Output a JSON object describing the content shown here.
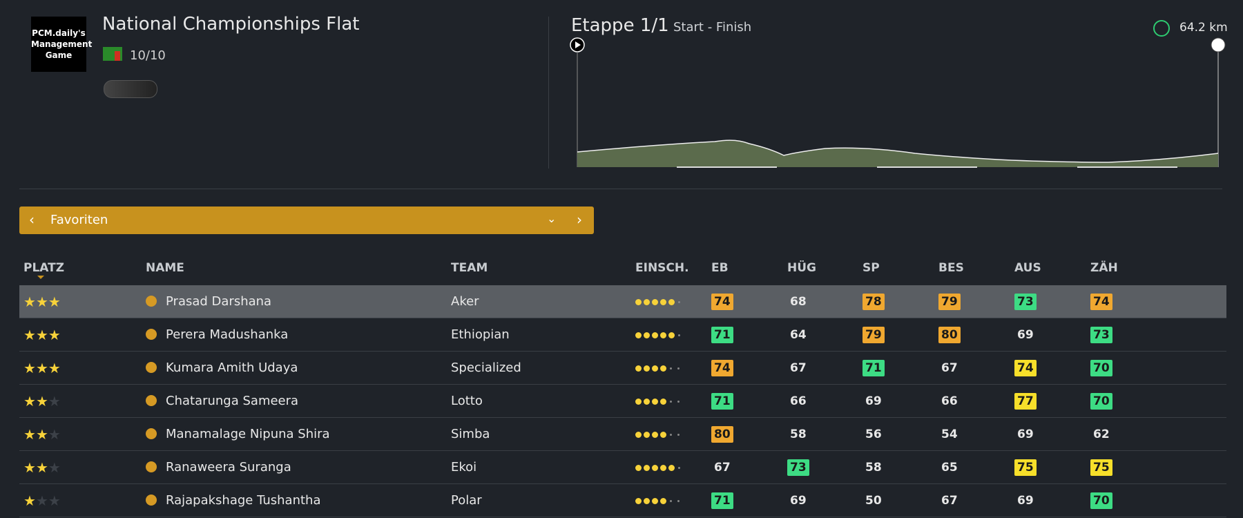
{
  "header": {
    "logo_text": "PCM.daily's Management Game",
    "title": "National Championships Flat",
    "rating": "10/10"
  },
  "stage": {
    "title": "Etappe 1/1",
    "route": "Start - Finish",
    "distance": "64.2 km"
  },
  "filter": {
    "label": "Favoriten"
  },
  "table": {
    "columns": [
      "PLATZ",
      "NAME",
      "TEAM",
      "EINSCH.",
      "EB",
      "HÜG",
      "SP",
      "BES",
      "AUS",
      "ZÄH"
    ],
    "max_stars": 3,
    "max_form": 6,
    "rows": [
      {
        "stars": 3,
        "name": "Prasad Darshana",
        "team": "Aker",
        "form": 5,
        "stats": [
          74,
          68,
          78,
          79,
          73,
          74
        ],
        "highlights": [
          "#f0a830",
          null,
          "#f0a830",
          "#f0a830",
          "#3ddc84",
          "#f0a830"
        ]
      },
      {
        "stars": 3,
        "name": "Perera Madushanka",
        "team": "Ethiopian",
        "form": 5,
        "stats": [
          71,
          64,
          79,
          80,
          69,
          73
        ],
        "highlights": [
          "#3ddc84",
          null,
          "#f0a830",
          "#f0a830",
          null,
          "#3ddc84"
        ]
      },
      {
        "stars": 3,
        "name": "Kumara Amith Udaya",
        "team": "Specialized",
        "form": 4,
        "stats": [
          74,
          67,
          71,
          67,
          74,
          70
        ],
        "highlights": [
          "#f0a830",
          null,
          "#3ddc84",
          null,
          "#f7df2a",
          "#3ddc84"
        ]
      },
      {
        "stars": 2,
        "name": "Chatarunga Sameera",
        "team": "Lotto",
        "form": 4,
        "stats": [
          71,
          66,
          69,
          66,
          77,
          70
        ],
        "highlights": [
          "#3ddc84",
          null,
          null,
          null,
          "#f7df2a",
          "#3ddc84"
        ]
      },
      {
        "stars": 2,
        "name": "Manamalage Nipuna Shira",
        "team": "Simba",
        "form": 4,
        "stats": [
          80,
          58,
          56,
          54,
          69,
          62
        ],
        "highlights": [
          "#f0a830",
          null,
          null,
          null,
          null,
          null
        ]
      },
      {
        "stars": 2,
        "name": "Ranaweera Suranga",
        "team": "Ekoi",
        "form": 5,
        "stats": [
          67,
          73,
          58,
          65,
          75,
          75
        ],
        "highlights": [
          null,
          "#3ddc84",
          null,
          null,
          "#f7df2a",
          "#f7df2a"
        ]
      },
      {
        "stars": 1,
        "name": "Rajapakshage Tushantha",
        "team": "Polar",
        "form": 4,
        "stats": [
          71,
          69,
          50,
          67,
          69,
          70
        ],
        "highlights": [
          "#3ddc84",
          null,
          null,
          null,
          null,
          "#3ddc84"
        ]
      }
    ]
  }
}
